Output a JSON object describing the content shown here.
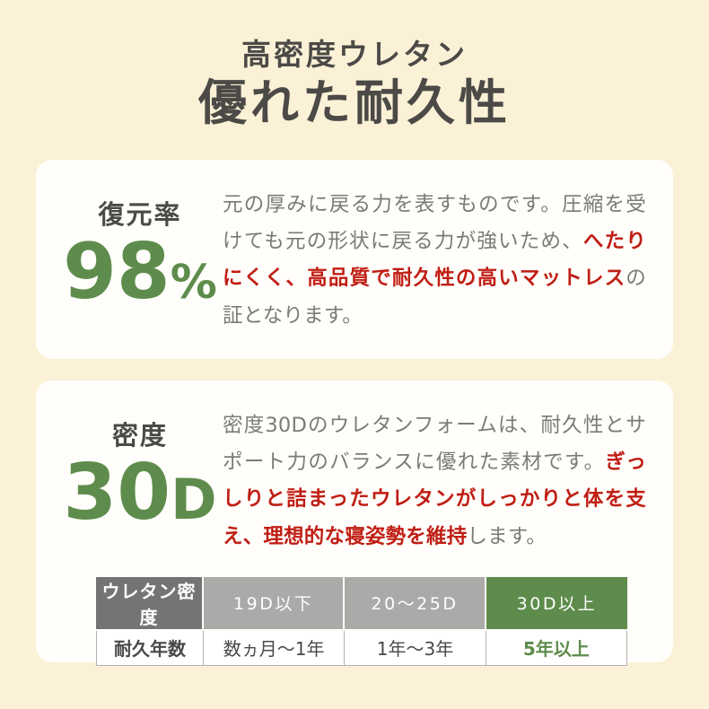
{
  "page": {
    "subtitle": "高密度ウレタン",
    "title": "優れた耐久性"
  },
  "cards": {
    "restore": {
      "stat_label": "復元率",
      "stat_value": "98",
      "stat_unit": "%",
      "text_before": "元の厚みに戻る力を表すものです。圧縮を受けても元の形状に戻る力が強いため、",
      "text_highlight": "へたりにくく、高品質で耐久性の高いマットレス",
      "text_after": "の証となります。"
    },
    "density": {
      "stat_label": "密度",
      "stat_value": "30",
      "stat_unit": "D",
      "text_before": "密度30Dのウレタンフォームは、耐久性とサポート力のバランスに優れた素材です。",
      "text_highlight": "ぎっしりと詰まったウレタンがしっかりと体を支え、理想的な寝姿勢を維持",
      "text_after": "します。"
    }
  },
  "table": {
    "header_label": "ウレタン密度",
    "header_cols": [
      "19D以下",
      "20〜25D",
      "30D以上"
    ],
    "row_label": "耐久年数",
    "row_values": [
      "数ヵ月〜1年",
      "1年〜3年",
      "5年以上"
    ]
  },
  "colors": {
    "background": "#FBF1D7",
    "card": "#FFFEFA",
    "heading_text": "#4C4A47",
    "body_text": "#7B7A78",
    "accent_red": "#C01E14",
    "accent_green": "#5E8C4C",
    "table_label_bg": "#757373",
    "table_gray_bg": "#ABAAA8",
    "table_border": "#B3B2B0"
  }
}
